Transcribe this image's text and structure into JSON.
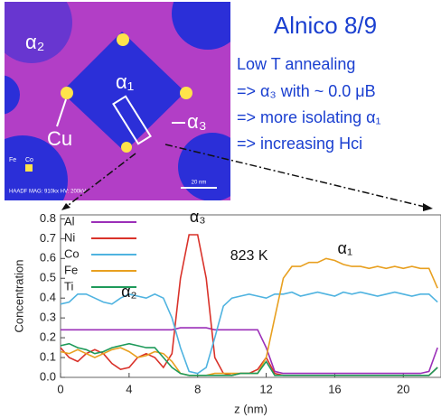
{
  "figure": {
    "image": {
      "labels": [
        "α₂",
        "α₁",
        "Cu",
        "α₃"
      ],
      "legend": [
        "Fe",
        "Co"
      ],
      "info": "HAADF MAG: 910kx HV: 200kV",
      "scale_bar": "20 nm"
    },
    "notes": {
      "title": "Alnico 8/9",
      "lines": [
        "Low T annealing",
        "=> α₃ with ~ 0.0 μB",
        "=> more isolating α₁",
        "=> increasing Hci"
      ]
    }
  },
  "chart_data": {
    "type": "line",
    "xlabel": "z (nm)",
    "ylabel": "Concentration",
    "annotations": [
      "α₃",
      "823 K",
      "α₁",
      "α₂"
    ],
    "x": [
      0,
      0.5,
      1,
      1.5,
      2,
      2.5,
      3,
      3.5,
      4,
      4.5,
      5,
      5.5,
      6,
      6.5,
      7,
      7.5,
      8,
      8.5,
      9,
      9.5,
      10,
      10.5,
      11,
      11.5,
      12,
      12.5,
      13,
      13.5,
      14,
      14.5,
      15,
      15.5,
      16,
      16.5,
      17,
      17.5,
      18,
      18.5,
      19,
      19.5,
      20,
      20.5,
      21,
      21.5,
      22
    ],
    "series": [
      {
        "name": "Al",
        "color": "#9b2fb8",
        "values": [
          0.24,
          0.24,
          0.24,
          0.24,
          0.24,
          0.24,
          0.24,
          0.24,
          0.24,
          0.24,
          0.24,
          0.24,
          0.24,
          0.24,
          0.25,
          0.25,
          0.25,
          0.25,
          0.24,
          0.24,
          0.24,
          0.24,
          0.24,
          0.24,
          0.15,
          0.03,
          0.02,
          0.02,
          0.02,
          0.02,
          0.02,
          0.02,
          0.02,
          0.02,
          0.02,
          0.02,
          0.02,
          0.02,
          0.02,
          0.02,
          0.02,
          0.02,
          0.02,
          0.03,
          0.15
        ]
      },
      {
        "name": "Ni",
        "color": "#d9322a",
        "values": [
          0.15,
          0.1,
          0.08,
          0.12,
          0.14,
          0.12,
          0.07,
          0.04,
          0.05,
          0.1,
          0.12,
          0.1,
          0.05,
          0.12,
          0.5,
          0.72,
          0.72,
          0.5,
          0.1,
          0.02,
          0.01,
          0.02,
          0.02,
          0.04,
          0.1,
          0.02,
          0.01,
          0.01,
          0.01,
          0.01,
          0.01,
          0.01,
          0.01,
          0.01,
          0.01,
          0.01,
          0.01,
          0.01,
          0.01,
          0.01,
          0.01,
          0.01,
          0.01,
          0.01,
          0.05
        ]
      },
      {
        "name": "Co",
        "color": "#4fb3e0",
        "values": [
          0.37,
          0.38,
          0.42,
          0.42,
          0.4,
          0.38,
          0.37,
          0.4,
          0.42,
          0.41,
          0.4,
          0.42,
          0.4,
          0.3,
          0.15,
          0.03,
          0.02,
          0.05,
          0.2,
          0.36,
          0.4,
          0.41,
          0.42,
          0.41,
          0.4,
          0.42,
          0.42,
          0.43,
          0.41,
          0.42,
          0.43,
          0.42,
          0.41,
          0.43,
          0.42,
          0.43,
          0.42,
          0.41,
          0.42,
          0.43,
          0.42,
          0.41,
          0.42,
          0.42,
          0.38
        ]
      },
      {
        "name": "Fe",
        "color": "#e8a020",
        "values": [
          0.13,
          0.12,
          0.14,
          0.12,
          0.1,
          0.12,
          0.14,
          0.15,
          0.13,
          0.1,
          0.11,
          0.13,
          0.12,
          0.08,
          0.02,
          0.01,
          0.01,
          0.01,
          0.02,
          0.02,
          0.02,
          0.02,
          0.02,
          0.02,
          0.1,
          0.3,
          0.5,
          0.56,
          0.56,
          0.58,
          0.58,
          0.6,
          0.59,
          0.57,
          0.56,
          0.56,
          0.55,
          0.56,
          0.55,
          0.56,
          0.55,
          0.56,
          0.55,
          0.55,
          0.45
        ]
      },
      {
        "name": "Ti",
        "color": "#1e9a5a",
        "values": [
          0.16,
          0.17,
          0.15,
          0.14,
          0.12,
          0.13,
          0.15,
          0.16,
          0.17,
          0.16,
          0.15,
          0.15,
          0.1,
          0.05,
          0.02,
          0.01,
          0.01,
          0.01,
          0.01,
          0.01,
          0.01,
          0.02,
          0.02,
          0.02,
          0.08,
          0.01,
          0.01,
          0.01,
          0.01,
          0.01,
          0.01,
          0.01,
          0.01,
          0.01,
          0.01,
          0.01,
          0.01,
          0.01,
          0.01,
          0.01,
          0.01,
          0.01,
          0.01,
          0.01,
          0.05
        ]
      }
    ],
    "xlim": [
      0,
      22.2
    ],
    "ylim": [
      0,
      0.82
    ],
    "xticks": [
      0,
      4,
      8,
      12,
      16,
      20
    ],
    "yticks": [
      {
        "value": 0,
        "label": "0.0"
      },
      0.1,
      0.2,
      0.3,
      0.4,
      0.5,
      0.6,
      0.7,
      0.8
    ],
    "legend": "upper left"
  }
}
